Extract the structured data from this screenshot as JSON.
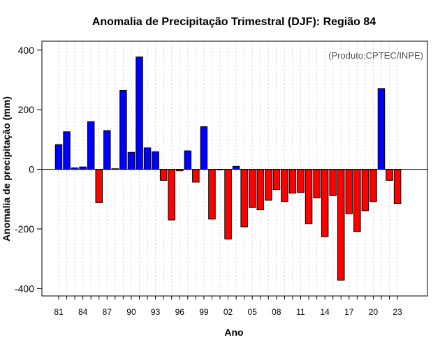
{
  "chart_data": {
    "type": "bar",
    "title": "Anomalia de Precipitação Trimestral (DJF): Região 84",
    "xlabel": "Ano",
    "ylabel": "Anomalia de precipitação (mm)",
    "annotation": "(Produto:CPTEC/INPE)",
    "ylim": [
      -425,
      430
    ],
    "yticks": [
      -400,
      -200,
      0,
      200,
      400
    ],
    "grid": true,
    "positive_color": "#0000ff",
    "negative_color": "#ff0000",
    "categories": [
      "1981",
      "1982",
      "1983",
      "1984",
      "1985",
      "1986",
      "1987",
      "1988",
      "1989",
      "1990",
      "1991",
      "1992",
      "1993",
      "1994",
      "1995",
      "1996",
      "1997",
      "1998",
      "1999",
      "2000",
      "2001",
      "2002",
      "2003",
      "2004",
      "2005",
      "2006",
      "2007",
      "2008",
      "2009",
      "2010",
      "2011",
      "2012",
      "2013",
      "2014",
      "2015",
      "2016",
      "2017",
      "2018",
      "2019",
      "2020",
      "2021",
      "2022",
      "2023"
    ],
    "tick_labels": [
      "81",
      "84",
      "87",
      "90",
      "93",
      "96",
      "99",
      "02",
      "05",
      "08",
      "11",
      "14",
      "17",
      "20",
      "23"
    ],
    "values": [
      83,
      126,
      5,
      8,
      160,
      -112,
      130,
      2,
      265,
      57,
      377,
      72,
      59,
      -37,
      -170,
      -5,
      62,
      -43,
      143,
      -167,
      0,
      -234,
      10,
      -193,
      -128,
      -136,
      -104,
      -68,
      -108,
      -80,
      -78,
      -183,
      -96,
      -226,
      -88,
      -372,
      -149,
      -209,
      -139,
      -108,
      271,
      -37,
      -115
    ]
  }
}
